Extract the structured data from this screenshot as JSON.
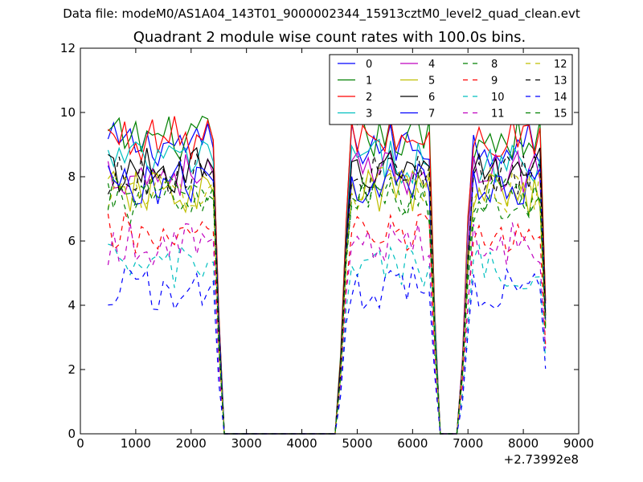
{
  "suptitle": "Data file: modeM0/AS1A04_143T01_9000002344_15913cztM0_level2_quad_clean.evt",
  "chart_data": {
    "type": "line",
    "title": "Quadrant 2 module wise count rates with 100.0s bins.",
    "xlabel": "",
    "ylabel": "",
    "x_offset_label": "+2.73992e8",
    "xlim": [
      0,
      9000
    ],
    "ylim": [
      0,
      12
    ],
    "xticks": [
      0,
      1000,
      2000,
      3000,
      4000,
      5000,
      6000,
      7000,
      8000,
      9000
    ],
    "yticks": [
      0,
      2,
      4,
      6,
      8,
      10,
      12
    ],
    "grid": false,
    "legend_position": "top-right",
    "legend_columns": 4,
    "x_start": 500,
    "x_step": 100,
    "num_points": 80,
    "active_segments": [
      {
        "start": 0,
        "end": 20
      },
      {
        "start": 42,
        "end": 59
      },
      {
        "start": 64,
        "end": 79
      }
    ],
    "series": [
      {
        "name": "0",
        "color": "#0000ff",
        "dash": "solid",
        "level": 9.0
      },
      {
        "name": "1",
        "color": "#008000",
        "dash": "solid",
        "level": 9.2
      },
      {
        "name": "2",
        "color": "#ff0000",
        "dash": "solid",
        "level": 9.2
      },
      {
        "name": "3",
        "color": "#00bfbf",
        "dash": "solid",
        "level": 8.5
      },
      {
        "name": "4",
        "color": "#bf00bf",
        "dash": "solid",
        "level": 8.1
      },
      {
        "name": "5",
        "color": "#bfbf00",
        "dash": "solid",
        "level": 7.5
      },
      {
        "name": "6",
        "color": "#000000",
        "dash": "solid",
        "level": 8.2
      },
      {
        "name": "7",
        "color": "#0000ff",
        "dash": "solid",
        "level": 7.8
      },
      {
        "name": "8",
        "color": "#008000",
        "dash": "dashed",
        "level": 7.2
      },
      {
        "name": "9",
        "color": "#ff0000",
        "dash": "dashed",
        "level": 6.2
      },
      {
        "name": "10",
        "color": "#00bfbf",
        "dash": "dashed",
        "level": 5.2
      },
      {
        "name": "11",
        "color": "#bf00bf",
        "dash": "dashed",
        "level": 5.9
      },
      {
        "name": "12",
        "color": "#bfbf00",
        "dash": "dashed",
        "level": 7.6
      },
      {
        "name": "13",
        "color": "#000000",
        "dash": "dashed",
        "level": 8.0
      },
      {
        "name": "14",
        "color": "#0000ff",
        "dash": "dashed",
        "level": 4.5
      },
      {
        "name": "15",
        "color": "#008000",
        "dash": "dashed",
        "level": 7.4
      }
    ]
  }
}
